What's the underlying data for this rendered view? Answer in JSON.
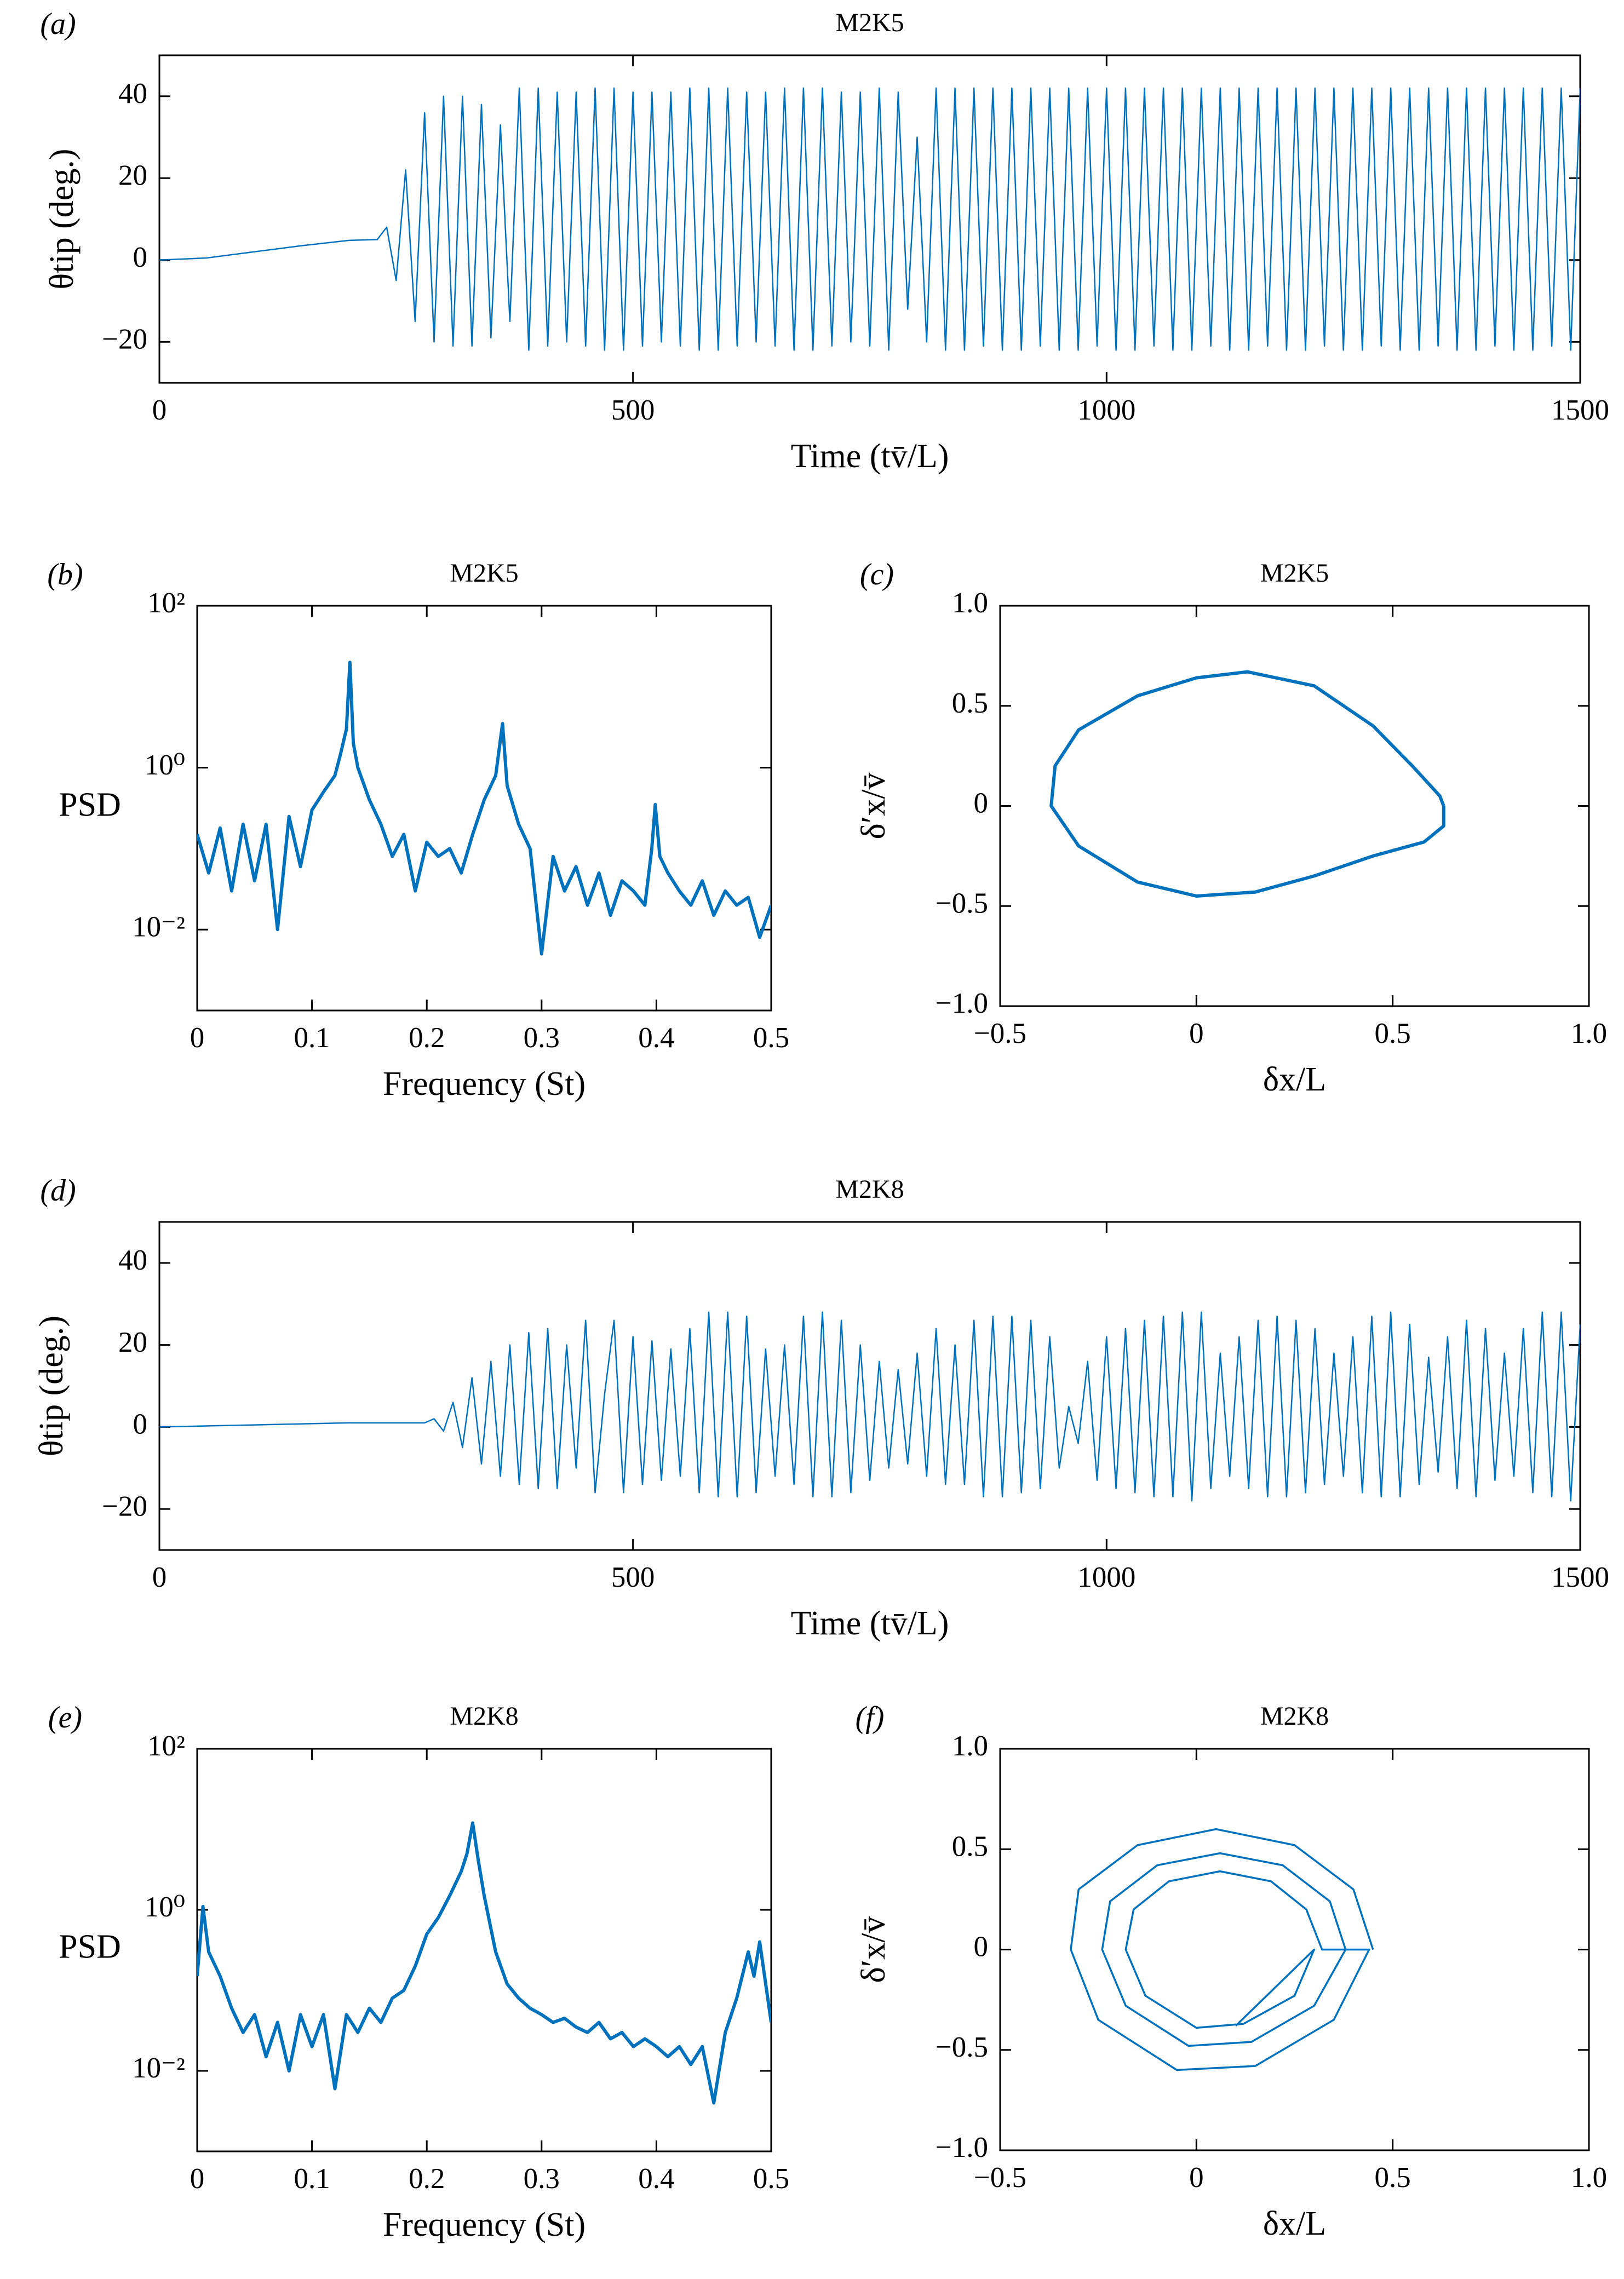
{
  "chart_data": [
    {
      "type": "line",
      "panel_label": "(a)",
      "title": "M2K5",
      "xlabel": "Time (tv̄/L)",
      "ylabel": "θtip (deg.)",
      "color": "#0072bd",
      "xlim": [
        0,
        1500
      ],
      "ylim": [
        -30,
        50
      ],
      "xticks": [
        0,
        500,
        1000,
        1500
      ],
      "yticks": [
        {
          "value": -20,
          "label": "−20"
        },
        0,
        20,
        40
      ],
      "x": [
        0,
        50,
        100,
        150,
        200,
        230,
        240,
        250,
        260,
        270,
        280,
        290,
        300,
        310,
        320,
        330,
        340,
        350,
        360,
        370,
        380,
        390,
        400,
        410,
        420,
        430,
        440,
        450,
        460,
        470,
        480,
        490,
        500,
        510,
        520,
        530,
        540,
        550,
        560,
        570,
        580,
        590,
        600,
        610,
        620,
        630,
        640,
        650,
        660,
        670,
        680,
        690,
        700,
        710,
        720,
        730,
        740,
        750,
        760,
        770,
        780,
        790,
        800,
        810,
        820,
        830,
        840,
        850,
        860,
        870,
        880,
        890,
        900,
        910,
        920,
        930,
        940,
        950,
        960,
        970,
        980,
        990,
        1000,
        1010,
        1020,
        1030,
        1040,
        1050,
        1060,
        1070,
        1080,
        1090,
        1100,
        1110,
        1120,
        1130,
        1140,
        1150,
        1160,
        1170,
        1180,
        1190,
        1200,
        1210,
        1220,
        1230,
        1240,
        1250,
        1260,
        1270,
        1280,
        1290,
        1300,
        1310,
        1320,
        1330,
        1340,
        1350,
        1360,
        1370,
        1380,
        1390,
        1400,
        1410,
        1420,
        1430,
        1440,
        1450,
        1460,
        1470,
        1480,
        1490,
        1500
      ],
      "values": [
        0,
        0.5,
        2,
        3.5,
        4.8,
        5,
        8,
        -5,
        22,
        -15,
        36,
        -20,
        40,
        -21,
        40,
        -21,
        38,
        -19,
        33,
        -15,
        42,
        -22,
        42,
        -21,
        41,
        -20,
        41,
        -21,
        42,
        -22,
        42,
        -22,
        41,
        -21,
        41,
        -20,
        41,
        -21,
        42,
        -22,
        42,
        -22,
        42,
        -21,
        41,
        -20,
        41,
        -21,
        42,
        -22,
        42,
        -22,
        42,
        -21,
        41,
        -20,
        41,
        -21,
        42,
        -22,
        41,
        -12,
        30,
        -20,
        42,
        -22,
        42,
        -22,
        42,
        -21,
        42,
        -22,
        42,
        -22,
        42,
        -21,
        42,
        -22,
        42,
        -22,
        42,
        -21,
        42,
        -22,
        42,
        -22,
        42,
        -21,
        42,
        -22,
        42,
        -22,
        42,
        -21,
        42,
        -22,
        42,
        -22,
        42,
        -21,
        42,
        -22,
        42,
        -22,
        42,
        -21,
        42,
        -22,
        42,
        -22,
        42,
        -21,
        42,
        -22,
        42,
        -22,
        42,
        -21,
        42,
        -22,
        42,
        -22,
        42,
        -21,
        42,
        -22,
        42,
        -22,
        42,
        -21,
        42,
        -22,
        42
      ]
    },
    {
      "type": "line",
      "panel_label": "(b)",
      "title": "M2K5",
      "xlabel": "Frequency (St)",
      "ylabel": "PSD",
      "color": "#0072bd",
      "yscale": "log",
      "xlim": [
        0,
        0.5
      ],
      "ylim": [
        0.001,
        100
      ],
      "xticks": [
        0,
        0.1,
        0.2,
        0.3,
        0.4,
        0.5
      ],
      "yticks": [
        {
          "value": 0.01,
          "label": "10⁻²"
        },
        {
          "value": 1,
          "label": "10⁰"
        },
        {
          "value": 100,
          "label": "10²"
        }
      ],
      "x": [
        0,
        0.01,
        0.02,
        0.03,
        0.04,
        0.05,
        0.06,
        0.07,
        0.08,
        0.09,
        0.1,
        0.11,
        0.12,
        0.125,
        0.13,
        0.133,
        0.136,
        0.14,
        0.15,
        0.16,
        0.17,
        0.18,
        0.19,
        0.2,
        0.21,
        0.22,
        0.23,
        0.24,
        0.25,
        0.26,
        0.266,
        0.27,
        0.28,
        0.29,
        0.3,
        0.31,
        0.32,
        0.33,
        0.34,
        0.35,
        0.36,
        0.37,
        0.38,
        0.39,
        0.396,
        0.399,
        0.403,
        0.41,
        0.42,
        0.43,
        0.44,
        0.45,
        0.46,
        0.47,
        0.48,
        0.49,
        0.5
      ],
      "values": [
        0.15,
        0.05,
        0.18,
        0.03,
        0.2,
        0.04,
        0.2,
        0.01,
        0.25,
        0.06,
        0.3,
        0.5,
        0.8,
        1.5,
        3,
        20,
        2,
        1,
        0.4,
        0.2,
        0.08,
        0.15,
        0.03,
        0.12,
        0.08,
        0.1,
        0.05,
        0.15,
        0.4,
        0.8,
        3.5,
        0.6,
        0.2,
        0.1,
        0.005,
        0.08,
        0.03,
        0.06,
        0.02,
        0.05,
        0.015,
        0.04,
        0.03,
        0.02,
        0.1,
        0.35,
        0.08,
        0.05,
        0.03,
        0.02,
        0.04,
        0.015,
        0.03,
        0.02,
        0.025,
        0.008,
        0.02
      ]
    },
    {
      "type": "line",
      "panel_label": "(c)",
      "title": "M2K5",
      "xlabel": "δx/L",
      "ylabel": "δ′x/v̄",
      "color": "#0072bd",
      "xlim": [
        -0.5,
        1
      ],
      "ylim": [
        -1,
        1
      ],
      "xticks": [
        {
          "value": -0.5,
          "label": "−0.5"
        },
        0,
        0.5,
        {
          "value": 1,
          "label": "1.0"
        }
      ],
      "yticks": [
        {
          "value": -1,
          "label": "−1.0"
        },
        {
          "value": -0.5,
          "label": "−0.5"
        },
        0,
        0.5,
        {
          "value": 1,
          "label": "1.0"
        }
      ],
      "x": [
        0.63,
        0.62,
        0.55,
        0.45,
        0.3,
        0.13,
        0,
        -0.15,
        -0.3,
        -0.36,
        -0.37,
        -0.3,
        -0.15,
        0,
        0.15,
        0.3,
        0.45,
        0.58,
        0.63,
        0.63
      ],
      "values": [
        0,
        0.05,
        0.2,
        0.4,
        0.6,
        0.67,
        0.64,
        0.55,
        0.38,
        0.2,
        0,
        -0.2,
        -0.38,
        -0.45,
        -0.43,
        -0.35,
        -0.25,
        -0.18,
        -0.1,
        0
      ]
    },
    {
      "type": "line",
      "panel_label": "(d)",
      "title": "M2K8",
      "xlabel": "Time (tv̄/L)",
      "ylabel": "θtip (deg.)",
      "color": "#0072bd",
      "xlim": [
        0,
        1500
      ],
      "ylim": [
        -30,
        50
      ],
      "xticks": [
        0,
        500,
        1000,
        1500
      ],
      "yticks": [
        {
          "value": -20,
          "label": "−20"
        },
        0,
        20,
        40
      ],
      "x": [
        0,
        100,
        200,
        280,
        290,
        300,
        310,
        320,
        330,
        340,
        350,
        360,
        370,
        380,
        390,
        400,
        410,
        420,
        430,
        440,
        450,
        460,
        470,
        480,
        490,
        500,
        510,
        520,
        530,
        540,
        550,
        560,
        570,
        580,
        590,
        600,
        610,
        620,
        630,
        640,
        650,
        660,
        670,
        680,
        690,
        700,
        710,
        720,
        730,
        740,
        750,
        760,
        770,
        780,
        790,
        800,
        810,
        820,
        830,
        840,
        850,
        860,
        870,
        880,
        890,
        900,
        910,
        920,
        930,
        940,
        950,
        960,
        970,
        980,
        990,
        1000,
        1010,
        1020,
        1030,
        1040,
        1050,
        1060,
        1070,
        1080,
        1090,
        1100,
        1110,
        1120,
        1130,
        1140,
        1150,
        1160,
        1170,
        1180,
        1190,
        1200,
        1210,
        1220,
        1230,
        1240,
        1250,
        1260,
        1270,
        1280,
        1290,
        1300,
        1310,
        1320,
        1330,
        1340,
        1350,
        1360,
        1370,
        1380,
        1390,
        1400,
        1410,
        1420,
        1430,
        1440,
        1450,
        1460,
        1470,
        1480,
        1490,
        1500
      ],
      "values": [
        0,
        0.5,
        1,
        1,
        2,
        -1,
        6,
        -5,
        12,
        -9,
        16,
        -12,
        20,
        -14,
        23,
        -15,
        24,
        -15,
        20,
        -10,
        26,
        -16,
        8,
        26,
        -16,
        22,
        -14,
        21,
        -13,
        19,
        -12,
        24,
        -16,
        28,
        -17,
        28,
        -17,
        27,
        -16,
        19,
        -12,
        20,
        -14,
        27,
        -17,
        28,
        -17,
        26,
        -16,
        20,
        -13,
        16,
        -10,
        14,
        -9,
        18,
        -12,
        24,
        -14,
        20,
        -14,
        26,
        -17,
        27,
        -17,
        27,
        -16,
        26,
        -15,
        22,
        -10,
        5,
        -4,
        16,
        -13,
        22,
        -15,
        24,
        -16,
        26,
        -17,
        27,
        -17,
        28,
        -18,
        28,
        -15,
        18,
        -12,
        22,
        -15,
        26,
        -17,
        27,
        -17,
        26,
        -16,
        24,
        -14,
        18,
        -12,
        22,
        -16,
        27,
        -17,
        28,
        -17,
        25,
        -14,
        17,
        -11,
        22,
        -15,
        26,
        -17,
        24,
        -13,
        18,
        -12,
        24,
        -16,
        28,
        -17,
        28,
        -18,
        25
      ]
    },
    {
      "type": "line",
      "panel_label": "(e)",
      "title": "M2K8",
      "xlabel": "Frequency (St)",
      "ylabel": "PSD",
      "color": "#0072bd",
      "yscale": "log",
      "xlim": [
        0,
        0.5
      ],
      "ylim": [
        0.001,
        100
      ],
      "xticks": [
        0,
        0.1,
        0.2,
        0.3,
        0.4,
        0.5
      ],
      "yticks": [
        {
          "value": 0.01,
          "label": "10⁻²"
        },
        {
          "value": 1,
          "label": "10⁰"
        },
        {
          "value": 100,
          "label": "10²"
        }
      ],
      "x": [
        0,
        0.005,
        0.01,
        0.02,
        0.03,
        0.04,
        0.05,
        0.06,
        0.07,
        0.08,
        0.09,
        0.1,
        0.11,
        0.12,
        0.13,
        0.14,
        0.15,
        0.16,
        0.17,
        0.18,
        0.19,
        0.2,
        0.21,
        0.22,
        0.23,
        0.235,
        0.24,
        0.245,
        0.25,
        0.26,
        0.27,
        0.28,
        0.29,
        0.3,
        0.31,
        0.32,
        0.33,
        0.34,
        0.35,
        0.36,
        0.37,
        0.38,
        0.39,
        0.4,
        0.41,
        0.42,
        0.43,
        0.44,
        0.45,
        0.46,
        0.47,
        0.48,
        0.485,
        0.49,
        0.5
      ],
      "values": [
        0.15,
        1.1,
        0.3,
        0.15,
        0.06,
        0.03,
        0.05,
        0.015,
        0.04,
        0.01,
        0.05,
        0.02,
        0.05,
        0.006,
        0.05,
        0.03,
        0.06,
        0.04,
        0.08,
        0.1,
        0.2,
        0.5,
        0.8,
        1.5,
        3,
        5,
        12,
        4,
        1.5,
        0.3,
        0.12,
        0.08,
        0.06,
        0.05,
        0.04,
        0.045,
        0.035,
        0.03,
        0.04,
        0.025,
        0.03,
        0.02,
        0.025,
        0.02,
        0.015,
        0.02,
        0.012,
        0.02,
        0.004,
        0.03,
        0.08,
        0.3,
        0.15,
        0.4,
        0.04
      ]
    },
    {
      "type": "line",
      "panel_label": "(f)",
      "title": "M2K8",
      "xlabel": "δx/L",
      "ylabel": "δ′x/v̄",
      "color": "#0072bd",
      "xlim": [
        -0.5,
        1
      ],
      "ylim": [
        -1,
        1
      ],
      "xticks": [
        {
          "value": -0.5,
          "label": "−0.5"
        },
        0,
        0.5,
        {
          "value": 1,
          "label": "1.0"
        }
      ],
      "yticks": [
        {
          "value": -1,
          "label": "−1.0"
        },
        {
          "value": -0.5,
          "label": "−0.5"
        },
        0,
        0.5,
        {
          "value": 1,
          "label": "1.0"
        }
      ],
      "x": [
        0.45,
        0.4,
        0.25,
        0.05,
        -0.15,
        -0.3,
        -0.32,
        -0.25,
        -0.05,
        0.15,
        0.35,
        0.44,
        0.38,
        0.34,
        0.22,
        0.06,
        -0.1,
        -0.22,
        -0.24,
        -0.18,
        -0.02,
        0.14,
        0.3,
        0.38,
        0.32,
        0.28,
        0.19,
        0.06,
        -0.07,
        -0.16,
        -0.18,
        -0.13,
        0,
        0.12,
        0.25,
        0.3,
        0.1
      ],
      "values": [
        0,
        0.3,
        0.52,
        0.6,
        0.52,
        0.3,
        0,
        -0.35,
        -0.6,
        -0.58,
        -0.35,
        0,
        0,
        0.24,
        0.42,
        0.48,
        0.42,
        0.24,
        0,
        -0.28,
        -0.48,
        -0.46,
        -0.28,
        0,
        0,
        0.2,
        0.34,
        0.39,
        0.34,
        0.2,
        0,
        -0.23,
        -0.39,
        -0.37,
        -0.23,
        0,
        -0.38
      ]
    }
  ]
}
